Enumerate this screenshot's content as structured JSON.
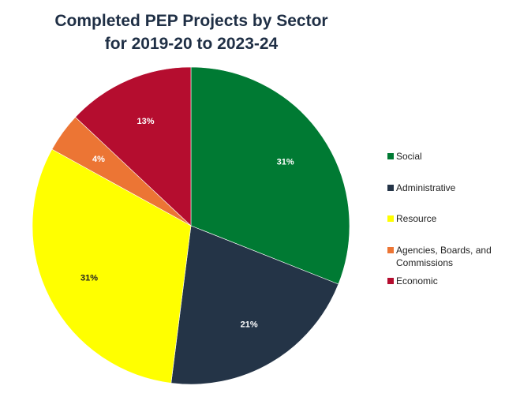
{
  "chart_data": {
    "type": "pie",
    "title_line1": "Completed PEP Projects by Sector",
    "title_line2": "for 2019-20 to 2023-24",
    "slices": [
      {
        "label": "Social",
        "value": 31,
        "display": "31%",
        "color": "#007a33",
        "label_color": "#ffffff"
      },
      {
        "label": "Administrative",
        "value": 21,
        "display": "21%",
        "color": "#243447",
        "label_color": "#ffffff"
      },
      {
        "label": "Resource",
        "value": 31,
        "display": "31%",
        "color": "#ffff00",
        "label_color": "#222222"
      },
      {
        "label": "Agencies, Boards, and Commissions",
        "value": 4,
        "display": "4%",
        "color": "#ec7534",
        "label_color": "#ffffff"
      },
      {
        "label": "Economic",
        "value": 13,
        "display": "13%",
        "color": "#b50d2f",
        "label_color": "#ffffff"
      }
    ],
    "legend_position": "right"
  }
}
